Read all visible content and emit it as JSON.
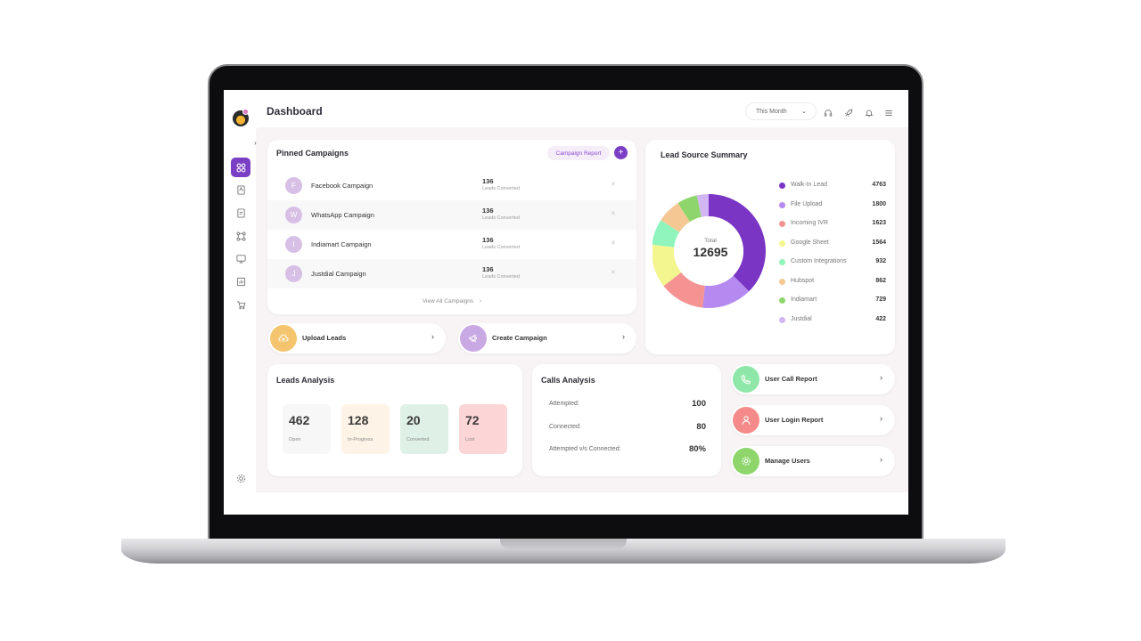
{
  "header": {
    "title": "Dashboard",
    "period_select": "This Month",
    "icons": [
      "headset-icon",
      "rocket-icon",
      "bell-icon",
      "menu-icon"
    ]
  },
  "sidebar": {
    "items": [
      "grid-icon",
      "contact-book-icon",
      "document-icon",
      "flow-icon",
      "monitor-icon",
      "report-icon",
      "cart-icon",
      "settings-icon"
    ]
  },
  "pinned": {
    "title": "Pinned Campaigns",
    "report_button": "Campaign Report",
    "add_button": "+",
    "campaigns": [
      {
        "initial": "F",
        "name": "Facebook Campaign",
        "count": "136",
        "sub": "Leads Converted"
      },
      {
        "initial": "W",
        "name": "WhatsApp Campaign",
        "count": "136",
        "sub": "Leads Converted"
      },
      {
        "initial": "I",
        "name": "Indiamart Campaign",
        "count": "136",
        "sub": "Leads Converted"
      },
      {
        "initial": "J",
        "name": "Justdial Campaign",
        "count": "136",
        "sub": "Leads Converted"
      }
    ],
    "view_all": "View All Campaigns"
  },
  "actions": {
    "upload": "Upload Leads",
    "create": "Create Campaign"
  },
  "lead_source": {
    "title": "Lead Source Summary",
    "total_label": "Total",
    "total": "12695",
    "items": [
      {
        "label": "Walk-In Lead",
        "value": 4763,
        "color": "#7b35c4"
      },
      {
        "label": "File Upload",
        "value": 1800,
        "color": "#b58af0"
      },
      {
        "label": "Incoming IVR",
        "value": 1623,
        "color": "#f59393"
      },
      {
        "label": "Google Sheet",
        "value": 1564,
        "color": "#f3f58f"
      },
      {
        "label": "Custom Integrations",
        "value": 932,
        "color": "#8ff5bd"
      },
      {
        "label": "Hubspot",
        "value": 862,
        "color": "#f5c893"
      },
      {
        "label": "Indiamart",
        "value": 729,
        "color": "#8ed66b"
      },
      {
        "label": "Justdial",
        "value": 422,
        "color": "#d2b6f4"
      }
    ]
  },
  "leads": {
    "title": "Leads Analysis",
    "stats": [
      {
        "value": "462",
        "label": "Open",
        "color": "#f7f7f7"
      },
      {
        "value": "128",
        "label": "In-Progress",
        "color": "#fdf3e6"
      },
      {
        "value": "20",
        "label": "Converted",
        "color": "#dff0e6"
      },
      {
        "value": "72",
        "label": "Lost",
        "color": "#fcd6d6"
      }
    ]
  },
  "calls": {
    "title": "Calls Analysis",
    "rows": [
      {
        "label": "Attempted:",
        "value": "100"
      },
      {
        "label": "Connected:",
        "value": "80"
      },
      {
        "label": "Attempted v/s Connected:",
        "value": "80%"
      }
    ]
  },
  "reports": {
    "call_report": "User Call Report",
    "login_report": "User Login Report",
    "manage_users": "Manage Users"
  },
  "colors": {
    "accent": "#7a3fc4",
    "upload_icon": "#f5c46f",
    "create_icon": "#c9a9e3",
    "call_icon": "#8ee6a8",
    "login_icon": "#f58a8a",
    "manage_icon": "#8ed66b"
  }
}
